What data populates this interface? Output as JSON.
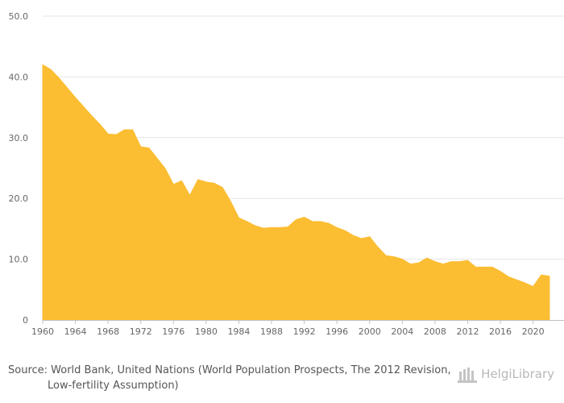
{
  "chart_data": {
    "type": "area",
    "title": "",
    "xlabel": "",
    "ylabel": "",
    "x": [
      1960,
      1961,
      1962,
      1963,
      1964,
      1965,
      1966,
      1967,
      1968,
      1969,
      1970,
      1971,
      1972,
      1973,
      1974,
      1975,
      1976,
      1977,
      1978,
      1979,
      1980,
      1981,
      1982,
      1983,
      1984,
      1985,
      1986,
      1987,
      1988,
      1989,
      1990,
      1991,
      1992,
      1993,
      1994,
      1995,
      1996,
      1997,
      1998,
      1999,
      2000,
      2001,
      2002,
      2003,
      2004,
      2005,
      2006,
      2007,
      2008,
      2009,
      2010,
      2011,
      2012,
      2013,
      2014,
      2015,
      2016,
      2017,
      2018,
      2019,
      2020,
      2021,
      2022
    ],
    "values": [
      42.0,
      41.2,
      39.8,
      38.2,
      36.6,
      35.1,
      33.6,
      32.2,
      30.6,
      30.5,
      31.3,
      31.3,
      28.5,
      28.3,
      26.6,
      24.9,
      22.3,
      22.9,
      20.5,
      23.1,
      22.7,
      22.5,
      21.8,
      19.5,
      16.8,
      16.2,
      15.5,
      15.1,
      15.2,
      15.2,
      15.3,
      16.5,
      16.9,
      16.2,
      16.2,
      15.9,
      15.2,
      14.7,
      13.9,
      13.4,
      13.7,
      12.0,
      10.6,
      10.4,
      10.0,
      9.2,
      9.4,
      10.2,
      9.6,
      9.2,
      9.6,
      9.6,
      9.8,
      8.7,
      8.7,
      8.7,
      8.0,
      7.1,
      6.6,
      6.1,
      5.5,
      7.4,
      7.2
    ],
    "x_ticks": [
      "1960",
      "1964",
      "1968",
      "1972",
      "1976",
      "1980",
      "1984",
      "1988",
      "1992",
      "1996",
      "2000",
      "2004",
      "2008",
      "2012",
      "2016",
      "2020"
    ],
    "y_ticks": [
      "0",
      "10.0",
      "20.0",
      "30.0",
      "40.0",
      "50.0"
    ],
    "ylim": [
      0,
      50
    ],
    "xlim": [
      1960,
      2022.6
    ],
    "grid": true,
    "color": "#fbbd32"
  },
  "footer": {
    "source_text": "Source: World Bank, United Nations (World Population Prospects, The 2012 Revision, Low-fertility Assumption)",
    "brand": "HelgiLibrary"
  }
}
